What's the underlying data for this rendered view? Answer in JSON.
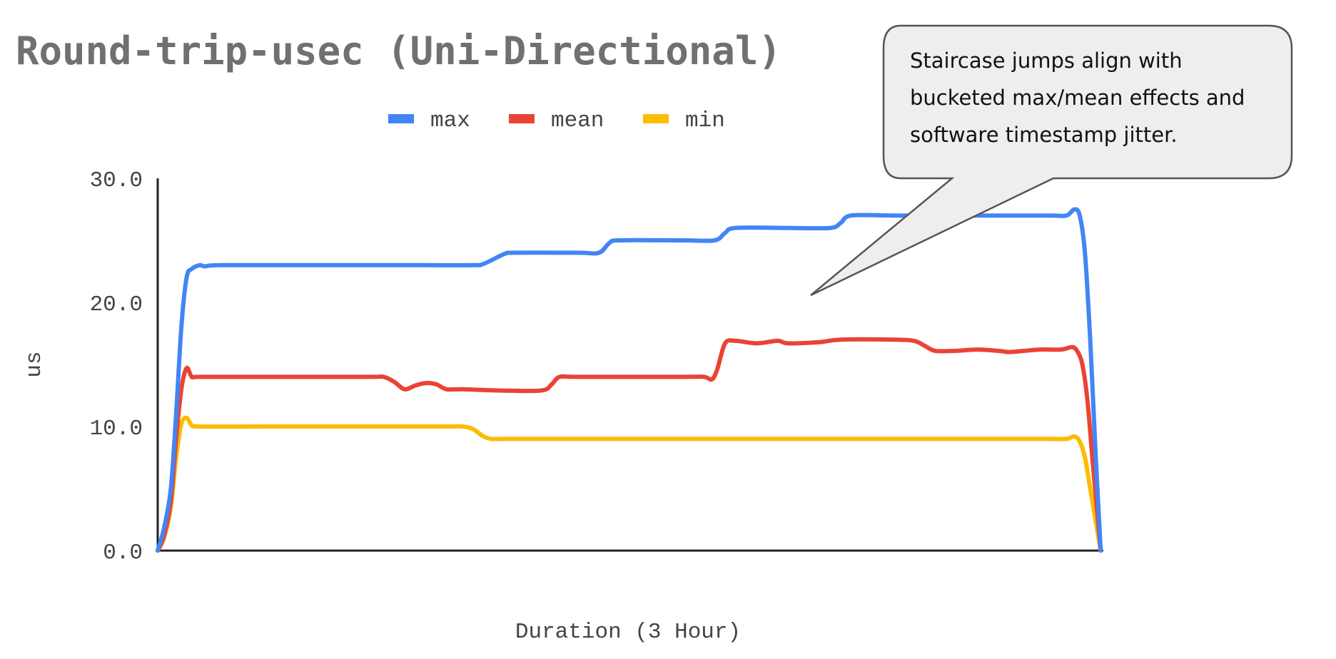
{
  "chart_data": {
    "type": "line",
    "title": "Round-trip-usec (Uni-Directional)",
    "xlabel": "Duration (3 Hour)",
    "ylabel": "us",
    "ylim": [
      0,
      30
    ],
    "xlim": [
      0,
      180
    ],
    "yticks": [
      0,
      10,
      20,
      30
    ],
    "ytick_labels": [
      "0.0",
      "10.0",
      "20.0",
      "30.0"
    ],
    "grid": false,
    "legend_position": "top-center",
    "series": [
      {
        "name": "max",
        "color": "#4285F4",
        "x": [
          0,
          1.2,
          2.5,
          3.5,
          4.5,
          5.5,
          6.5,
          8,
          9,
          12,
          30,
          50,
          60,
          62,
          66,
          68,
          80,
          84,
          86,
          88,
          100,
          106,
          108,
          110,
          120,
          128,
          130,
          132,
          140,
          150,
          160,
          170,
          173,
          174.5,
          175.5,
          176.5,
          177.5,
          178.5,
          179.5
        ],
        "values": [
          0,
          1.8,
          5,
          11,
          18,
          22,
          22.7,
          23,
          22.9,
          23,
          23,
          23,
          23,
          23.1,
          23.9,
          24,
          24,
          24,
          24.8,
          25,
          25,
          25,
          25.6,
          26,
          26,
          26,
          26.4,
          27,
          27,
          27,
          27,
          27,
          27,
          27.5,
          27,
          24,
          17,
          8,
          0
        ]
      },
      {
        "name": "mean",
        "color": "#EA4335",
        "x": [
          0,
          1.2,
          2.5,
          3.5,
          4.5,
          5.5,
          6.5,
          8,
          20,
          40,
          43,
          45,
          47,
          49,
          51,
          53,
          55,
          58,
          65,
          73,
          75,
          76.5,
          80,
          100,
          104,
          105.5,
          106.5,
          108,
          110,
          114,
          118,
          120,
          126,
          130,
          140,
          144,
          146,
          148,
          152,
          156,
          160,
          162,
          165,
          168,
          172,
          174,
          175,
          176,
          177,
          178,
          179.5
        ],
        "values": [
          0,
          1.2,
          4,
          9,
          13,
          14.7,
          14,
          14,
          14,
          14,
          14,
          13.6,
          13,
          13.3,
          13.5,
          13.4,
          13,
          13,
          12.9,
          12.9,
          13.4,
          14,
          14,
          14,
          14,
          13.8,
          14.6,
          16.7,
          16.9,
          16.7,
          16.9,
          16.7,
          16.8,
          17,
          17,
          16.9,
          16.5,
          16.1,
          16.1,
          16.2,
          16.1,
          16,
          16.1,
          16.2,
          16.2,
          16.4,
          16.1,
          15,
          12,
          7,
          0
        ]
      },
      {
        "name": "min",
        "color": "#FBBC04",
        "x": [
          0,
          1.2,
          2.5,
          3.5,
          4.5,
          5.5,
          6.5,
          8,
          20,
          40,
          55,
          58,
          60,
          62,
          63.5,
          66,
          80,
          100,
          120,
          140,
          160,
          170,
          173,
          174.5,
          175.5,
          176.5,
          177.5,
          178.5,
          179.5
        ],
        "values": [
          0,
          1,
          3.5,
          7.5,
          10.2,
          10.7,
          10.1,
          10,
          10,
          10,
          10,
          10,
          9.8,
          9.2,
          9,
          9,
          9,
          9,
          9,
          9,
          9,
          9,
          9,
          9.2,
          8.8,
          7.5,
          5,
          2.5,
          0
        ]
      }
    ]
  },
  "annotation": {
    "lines": [
      "Staircase jumps align with",
      "bucketed max/mean effects and",
      "software timestamp jitter."
    ]
  }
}
